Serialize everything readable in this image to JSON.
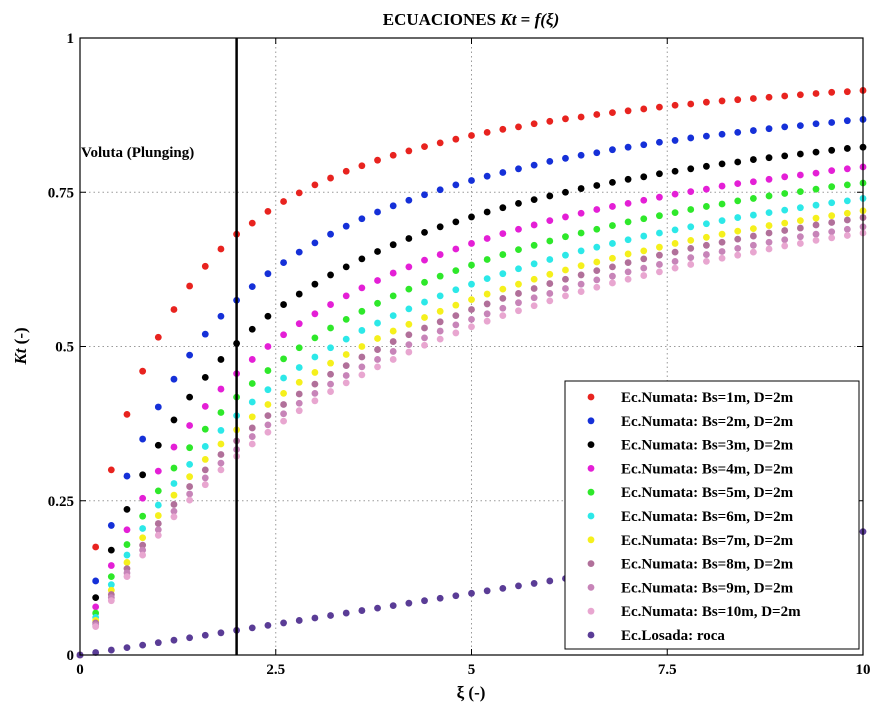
{
  "chart_data": {
    "type": "scatter",
    "title_prefix": "ECUACIONES ",
    "title_math_lhs": "Kt",
    "title_math_eq": " = ",
    "title_math_rhs": "f(ξ)",
    "xlabel": "ξ (-)",
    "ylabel_math": "Kt",
    "ylabel_unit": " (-)",
    "xlim": [
      0,
      10
    ],
    "ylim": [
      0,
      1
    ],
    "xticks": [
      0,
      2.5,
      5,
      7.5,
      10
    ],
    "xtick_labels": [
      "0",
      "2.5",
      "5",
      "7.5",
      "10"
    ],
    "yticks": [
      0,
      0.25,
      0.5,
      0.75,
      1
    ],
    "ytick_labels": [
      "0",
      "0.25",
      "0.5",
      "0.75",
      "1"
    ],
    "grid": true,
    "legend_position": "bottom-right",
    "x": [
      0.0,
      0.2,
      0.4,
      0.6,
      0.8,
      1.0,
      1.2,
      1.4,
      1.6,
      1.8,
      2.0,
      2.2,
      2.4,
      2.6,
      2.8,
      3.0,
      3.2,
      3.4,
      3.6,
      3.8,
      4.0,
      4.2,
      4.4,
      4.6,
      4.8,
      5.0,
      5.2,
      5.4,
      5.6,
      5.8,
      6.0,
      6.2,
      6.4,
      6.6,
      6.8,
      7.0,
      7.2,
      7.4,
      7.6,
      7.8,
      8.0,
      8.2,
      8.4,
      8.6,
      8.8,
      9.0,
      9.2,
      9.4,
      9.6,
      9.8,
      10.0
    ],
    "series": [
      {
        "name": "Ec.Numata: Bs=1m, D=2m",
        "color": "#e8231f",
        "values": [
          0.0,
          0.175,
          0.3,
          0.39,
          0.46,
          0.515,
          0.56,
          0.598,
          0.63,
          0.658,
          0.682,
          0.7,
          0.719,
          0.735,
          0.749,
          0.762,
          0.773,
          0.784,
          0.793,
          0.802,
          0.81,
          0.817,
          0.824,
          0.83,
          0.836,
          0.842,
          0.847,
          0.852,
          0.856,
          0.861,
          0.865,
          0.869,
          0.872,
          0.876,
          0.879,
          0.882,
          0.885,
          0.888,
          0.891,
          0.893,
          0.896,
          0.898,
          0.9,
          0.902,
          0.904,
          0.906,
          0.908,
          0.91,
          0.912,
          0.913,
          0.915
        ]
      },
      {
        "name": "Ec.Numata: Bs=2m, D=2m",
        "color": "#1530d8",
        "values": [
          0.0,
          0.12,
          0.21,
          0.29,
          0.35,
          0.402,
          0.447,
          0.486,
          0.52,
          0.549,
          0.575,
          0.597,
          0.618,
          0.636,
          0.653,
          0.668,
          0.682,
          0.695,
          0.707,
          0.718,
          0.728,
          0.737,
          0.746,
          0.754,
          0.762,
          0.769,
          0.776,
          0.782,
          0.788,
          0.794,
          0.8,
          0.805,
          0.81,
          0.814,
          0.819,
          0.823,
          0.827,
          0.831,
          0.834,
          0.838,
          0.841,
          0.844,
          0.847,
          0.85,
          0.853,
          0.856,
          0.858,
          0.861,
          0.863,
          0.866,
          0.868
        ]
      },
      {
        "name": "Ec.Numata: Bs=3m, D=2m",
        "color": "#000000",
        "values": [
          0.0,
          0.093,
          0.17,
          0.236,
          0.292,
          0.34,
          0.381,
          0.418,
          0.45,
          0.479,
          0.505,
          0.528,
          0.549,
          0.568,
          0.585,
          0.601,
          0.616,
          0.629,
          0.642,
          0.654,
          0.665,
          0.675,
          0.685,
          0.694,
          0.702,
          0.71,
          0.718,
          0.725,
          0.732,
          0.738,
          0.744,
          0.75,
          0.756,
          0.761,
          0.766,
          0.771,
          0.775,
          0.78,
          0.784,
          0.788,
          0.792,
          0.796,
          0.799,
          0.803,
          0.806,
          0.809,
          0.812,
          0.815,
          0.818,
          0.821,
          0.823
        ]
      },
      {
        "name": "Ec.Numata: Bs=4m, D=2m",
        "color": "#e41fd6",
        "values": [
          0.0,
          0.078,
          0.145,
          0.203,
          0.254,
          0.298,
          0.337,
          0.372,
          0.403,
          0.431,
          0.456,
          0.479,
          0.5,
          0.519,
          0.537,
          0.553,
          0.568,
          0.582,
          0.595,
          0.607,
          0.619,
          0.629,
          0.64,
          0.649,
          0.658,
          0.667,
          0.675,
          0.683,
          0.69,
          0.697,
          0.704,
          0.71,
          0.716,
          0.722,
          0.727,
          0.732,
          0.737,
          0.742,
          0.747,
          0.751,
          0.755,
          0.76,
          0.764,
          0.767,
          0.771,
          0.775,
          0.778,
          0.781,
          0.785,
          0.788,
          0.791
        ]
      },
      {
        "name": "Ec.Numata: Bs=5m, D=2m",
        "color": "#2ee82a",
        "values": [
          0.0,
          0.068,
          0.127,
          0.179,
          0.225,
          0.266,
          0.303,
          0.336,
          0.366,
          0.393,
          0.418,
          0.44,
          0.461,
          0.48,
          0.498,
          0.514,
          0.53,
          0.544,
          0.557,
          0.57,
          0.582,
          0.593,
          0.604,
          0.614,
          0.623,
          0.632,
          0.641,
          0.649,
          0.657,
          0.664,
          0.671,
          0.678,
          0.684,
          0.69,
          0.696,
          0.702,
          0.707,
          0.712,
          0.717,
          0.722,
          0.727,
          0.731,
          0.736,
          0.74,
          0.744,
          0.748,
          0.751,
          0.755,
          0.759,
          0.762,
          0.765
        ]
      },
      {
        "name": "Ec.Numata: Bs=6m, D=2m",
        "color": "#2ce8e8",
        "values": [
          0.0,
          0.061,
          0.114,
          0.162,
          0.205,
          0.243,
          0.278,
          0.309,
          0.338,
          0.364,
          0.388,
          0.41,
          0.43,
          0.449,
          0.466,
          0.483,
          0.498,
          0.512,
          0.526,
          0.538,
          0.55,
          0.561,
          0.572,
          0.582,
          0.592,
          0.601,
          0.61,
          0.618,
          0.626,
          0.634,
          0.641,
          0.648,
          0.655,
          0.661,
          0.667,
          0.673,
          0.679,
          0.684,
          0.689,
          0.694,
          0.699,
          0.704,
          0.709,
          0.713,
          0.717,
          0.721,
          0.725,
          0.729,
          0.733,
          0.736,
          0.74
        ]
      },
      {
        "name": "Ec.Numata: Bs=7m, D=2m",
        "color": "#f5f01c",
        "values": [
          0.0,
          0.056,
          0.105,
          0.15,
          0.19,
          0.226,
          0.259,
          0.289,
          0.317,
          0.342,
          0.365,
          0.386,
          0.406,
          0.424,
          0.442,
          0.458,
          0.473,
          0.487,
          0.5,
          0.513,
          0.525,
          0.536,
          0.547,
          0.557,
          0.567,
          0.576,
          0.585,
          0.593,
          0.601,
          0.609,
          0.617,
          0.624,
          0.631,
          0.637,
          0.643,
          0.65,
          0.655,
          0.661,
          0.667,
          0.672,
          0.677,
          0.682,
          0.687,
          0.691,
          0.696,
          0.7,
          0.704,
          0.708,
          0.712,
          0.716,
          0.72
        ]
      },
      {
        "name": "Ec.Numata: Bs=8m, D=2m",
        "color": "#b1709a",
        "values": [
          0.0,
          0.052,
          0.098,
          0.14,
          0.178,
          0.213,
          0.244,
          0.273,
          0.3,
          0.325,
          0.347,
          0.368,
          0.388,
          0.406,
          0.423,
          0.439,
          0.455,
          0.469,
          0.483,
          0.495,
          0.508,
          0.519,
          0.53,
          0.54,
          0.55,
          0.56,
          0.569,
          0.578,
          0.586,
          0.594,
          0.602,
          0.609,
          0.616,
          0.623,
          0.629,
          0.636,
          0.642,
          0.648,
          0.653,
          0.659,
          0.664,
          0.669,
          0.674,
          0.679,
          0.684,
          0.688,
          0.692,
          0.697,
          0.701,
          0.705,
          0.709
        ]
      },
      {
        "name": "Ec.Numata: Bs=9m, D=2m",
        "color": "#c784b8",
        "values": [
          0.0,
          0.049,
          0.093,
          0.133,
          0.17,
          0.203,
          0.233,
          0.261,
          0.287,
          0.311,
          0.333,
          0.354,
          0.373,
          0.391,
          0.408,
          0.424,
          0.439,
          0.453,
          0.467,
          0.479,
          0.492,
          0.503,
          0.514,
          0.525,
          0.535,
          0.544,
          0.553,
          0.562,
          0.571,
          0.579,
          0.586,
          0.594,
          0.601,
          0.608,
          0.614,
          0.621,
          0.627,
          0.633,
          0.638,
          0.644,
          0.649,
          0.654,
          0.659,
          0.664,
          0.669,
          0.673,
          0.678,
          0.682,
          0.686,
          0.69,
          0.694
        ]
      },
      {
        "name": "Ec.Numata: Bs=10m, D=2m",
        "color": "#e8a6d0",
        "values": [
          0.0,
          0.046,
          0.088,
          0.127,
          0.162,
          0.194,
          0.224,
          0.251,
          0.276,
          0.3,
          0.322,
          0.342,
          0.361,
          0.379,
          0.396,
          0.412,
          0.427,
          0.441,
          0.454,
          0.467,
          0.479,
          0.491,
          0.502,
          0.512,
          0.522,
          0.532,
          0.541,
          0.55,
          0.558,
          0.566,
          0.574,
          0.582,
          0.589,
          0.596,
          0.603,
          0.609,
          0.615,
          0.621,
          0.627,
          0.633,
          0.638,
          0.643,
          0.648,
          0.653,
          0.658,
          0.663,
          0.667,
          0.672,
          0.676,
          0.68,
          0.684
        ]
      },
      {
        "name": "Ec.Losada: roca",
        "color": "#5a3c96",
        "values": [
          0.0,
          0.004,
          0.008,
          0.012,
          0.016,
          0.02,
          0.024,
          0.028,
          0.032,
          0.036,
          0.04,
          0.044,
          0.048,
          0.052,
          0.056,
          0.06,
          0.064,
          0.068,
          0.072,
          0.076,
          0.08,
          0.084,
          0.088,
          0.092,
          0.096,
          0.1,
          0.104,
          0.108,
          0.112,
          0.116,
          0.12,
          0.124,
          0.128,
          0.132,
          0.136,
          0.14,
          0.144,
          0.148,
          0.152,
          0.156,
          0.16,
          0.164,
          0.168,
          0.172,
          0.176,
          0.18,
          0.184,
          0.188,
          0.192,
          0.196,
          0.2
        ]
      }
    ],
    "annotations": [
      {
        "text": "Voluta (Plunging)",
        "vline_x": 2.0
      }
    ]
  }
}
